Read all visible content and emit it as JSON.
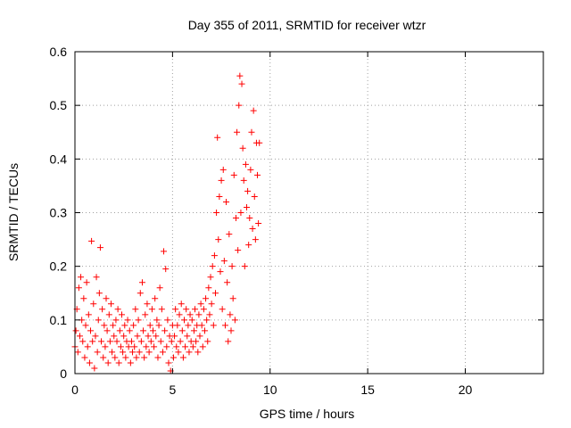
{
  "chart_data": {
    "type": "scatter",
    "title": "Day 355 of 2011, SRMTID for receiver wtzr",
    "xlabel": "GPS time / hours",
    "ylabel": "SRMTID / TECUs",
    "xlim": [
      0,
      24
    ],
    "ylim": [
      0,
      0.6
    ],
    "xticks": [
      0,
      5,
      10,
      15,
      20
    ],
    "yticks": [
      0,
      0.1,
      0.2,
      0.3,
      0.4,
      0.5,
      0.6
    ],
    "xtick_labels": [
      "0",
      "5",
      "10",
      "15",
      "20"
    ],
    "ytick_labels": [
      "0",
      "0.1",
      "0.2",
      "0.3",
      "0.4",
      "0.5",
      "0.6"
    ],
    "grid": true,
    "marker": "+",
    "marker_color": "#ff0000",
    "series": [
      {
        "name": "wtzr",
        "points": [
          [
            0.0,
            0.05
          ],
          [
            0.05,
            0.08
          ],
          [
            0.1,
            0.12
          ],
          [
            0.15,
            0.04
          ],
          [
            0.2,
            0.16
          ],
          [
            0.25,
            0.07
          ],
          [
            0.3,
            0.18
          ],
          [
            0.35,
            0.1
          ],
          [
            0.4,
            0.06
          ],
          [
            0.45,
            0.14
          ],
          [
            0.5,
            0.03
          ],
          [
            0.55,
            0.09
          ],
          [
            0.6,
            0.17
          ],
          [
            0.65,
            0.05
          ],
          [
            0.7,
            0.11
          ],
          [
            0.75,
            0.02
          ],
          [
            0.8,
            0.08
          ],
          [
            0.85,
            0.247
          ],
          [
            0.9,
            0.06
          ],
          [
            0.95,
            0.13
          ],
          [
            1.0,
            0.01
          ],
          [
            1.05,
            0.07
          ],
          [
            1.1,
            0.18
          ],
          [
            1.15,
            0.04
          ],
          [
            1.2,
            0.1
          ],
          [
            1.25,
            0.15
          ],
          [
            1.3,
            0.235
          ],
          [
            1.35,
            0.06
          ],
          [
            1.4,
            0.12
          ],
          [
            1.45,
            0.03
          ],
          [
            1.5,
            0.09
          ],
          [
            1.55,
            0.05
          ],
          [
            1.6,
            0.14
          ],
          [
            1.65,
            0.08
          ],
          [
            1.7,
            0.02
          ],
          [
            1.75,
            0.11
          ],
          [
            1.8,
            0.06
          ],
          [
            1.85,
            0.13
          ],
          [
            1.9,
            0.04
          ],
          [
            1.95,
            0.09
          ],
          [
            2.0,
            0.07
          ],
          [
            2.05,
            0.03
          ],
          [
            2.1,
            0.1
          ],
          [
            2.15,
            0.06
          ],
          [
            2.2,
            0.12
          ],
          [
            2.25,
            0.02
          ],
          [
            2.3,
            0.08
          ],
          [
            2.35,
            0.05
          ],
          [
            2.4,
            0.11
          ],
          [
            2.45,
            0.04
          ],
          [
            2.5,
            0.07
          ],
          [
            2.55,
            0.09
          ],
          [
            2.6,
            0.03
          ],
          [
            2.65,
            0.06
          ],
          [
            2.7,
            0.1
          ],
          [
            2.75,
            0.05
          ],
          [
            2.8,
            0.08
          ],
          [
            2.85,
            0.02
          ],
          [
            2.9,
            0.06
          ],
          [
            2.95,
            0.04
          ],
          [
            3.0,
            0.09
          ],
          [
            3.05,
            0.05
          ],
          [
            3.1,
            0.12
          ],
          [
            3.15,
            0.03
          ],
          [
            3.2,
            0.07
          ],
          [
            3.25,
            0.1
          ],
          [
            3.3,
            0.04
          ],
          [
            3.35,
            0.15
          ],
          [
            3.4,
            0.06
          ],
          [
            3.45,
            0.17
          ],
          [
            3.5,
            0.08
          ],
          [
            3.55,
            0.03
          ],
          [
            3.6,
            0.11
          ],
          [
            3.65,
            0.05
          ],
          [
            3.7,
            0.13
          ],
          [
            3.75,
            0.07
          ],
          [
            3.8,
            0.04
          ],
          [
            3.85,
            0.09
          ],
          [
            3.9,
            0.06
          ],
          [
            3.95,
            0.12
          ],
          [
            4.0,
            0.08
          ],
          [
            4.05,
            0.05
          ],
          [
            4.1,
            0.14
          ],
          [
            4.15,
            0.07
          ],
          [
            4.2,
            0.1
          ],
          [
            4.25,
            0.03
          ],
          [
            4.3,
            0.09
          ],
          [
            4.35,
            0.16
          ],
          [
            4.4,
            0.06
          ],
          [
            4.45,
            0.12
          ],
          [
            4.5,
            0.04
          ],
          [
            4.55,
            0.228
          ],
          [
            4.6,
            0.08
          ],
          [
            4.65,
            0.195
          ],
          [
            4.7,
            0.05
          ],
          [
            4.75,
            0.1
          ],
          [
            4.8,
            0.02
          ],
          [
            4.85,
            0.07
          ],
          [
            4.9,
            0.005
          ],
          [
            4.95,
            0.06
          ],
          [
            5.0,
            0.09
          ],
          [
            5.05,
            0.03
          ],
          [
            5.1,
            0.07
          ],
          [
            5.15,
            0.12
          ],
          [
            5.2,
            0.05
          ],
          [
            5.25,
            0.09
          ],
          [
            5.3,
            0.04
          ],
          [
            5.35,
            0.11
          ],
          [
            5.4,
            0.06
          ],
          [
            5.45,
            0.13
          ],
          [
            5.5,
            0.08
          ],
          [
            5.55,
            0.03
          ],
          [
            5.6,
            0.1
          ],
          [
            5.65,
            0.05
          ],
          [
            5.7,
            0.12
          ],
          [
            5.75,
            0.07
          ],
          [
            5.8,
            0.09
          ],
          [
            5.85,
            0.04
          ],
          [
            5.9,
            0.11
          ],
          [
            5.95,
            0.06
          ],
          [
            6.0,
            0.1
          ],
          [
            6.05,
            0.05
          ],
          [
            6.1,
            0.08
          ],
          [
            6.15,
            0.12
          ],
          [
            6.2,
            0.06
          ],
          [
            6.25,
            0.09
          ],
          [
            6.3,
            0.04
          ],
          [
            6.35,
            0.11
          ],
          [
            6.4,
            0.07
          ],
          [
            6.45,
            0.13
          ],
          [
            6.5,
            0.09
          ],
          [
            6.55,
            0.05
          ],
          [
            6.6,
            0.12
          ],
          [
            6.65,
            0.08
          ],
          [
            6.7,
            0.14
          ],
          [
            6.75,
            0.1
          ],
          [
            6.8,
            0.06
          ],
          [
            6.85,
            0.16
          ],
          [
            6.9,
            0.11
          ],
          [
            6.95,
            0.18
          ],
          [
            7.0,
            0.13
          ],
          [
            7.05,
            0.2
          ],
          [
            7.1,
            0.09
          ],
          [
            7.15,
            0.22
          ],
          [
            7.2,
            0.15
          ],
          [
            7.25,
            0.3
          ],
          [
            7.3,
            0.44
          ],
          [
            7.35,
            0.25
          ],
          [
            7.4,
            0.33
          ],
          [
            7.45,
            0.19
          ],
          [
            7.5,
            0.36
          ],
          [
            7.55,
            0.12
          ],
          [
            7.6,
            0.38
          ],
          [
            7.65,
            0.21
          ],
          [
            7.7,
            0.09
          ],
          [
            7.75,
            0.32
          ],
          [
            7.8,
            0.17
          ],
          [
            7.85,
            0.06
          ],
          [
            7.9,
            0.26
          ],
          [
            7.95,
            0.11
          ],
          [
            8.0,
            0.08
          ],
          [
            8.05,
            0.2
          ],
          [
            8.1,
            0.14
          ],
          [
            8.15,
            0.37
          ],
          [
            8.2,
            0.1
          ],
          [
            8.25,
            0.29
          ],
          [
            8.3,
            0.45
          ],
          [
            8.35,
            0.23
          ],
          [
            8.4,
            0.5
          ],
          [
            8.45,
            0.555
          ],
          [
            8.5,
            0.3
          ],
          [
            8.55,
            0.54
          ],
          [
            8.6,
            0.42
          ],
          [
            8.65,
            0.36
          ],
          [
            8.7,
            0.2
          ],
          [
            8.75,
            0.39
          ],
          [
            8.8,
            0.31
          ],
          [
            8.85,
            0.34
          ],
          [
            8.9,
            0.24
          ],
          [
            8.95,
            0.29
          ],
          [
            9.0,
            0.38
          ],
          [
            9.05,
            0.45
          ],
          [
            9.1,
            0.27
          ],
          [
            9.15,
            0.49
          ],
          [
            9.2,
            0.33
          ],
          [
            9.25,
            0.25
          ],
          [
            9.3,
            0.43
          ],
          [
            9.35,
            0.37
          ],
          [
            9.4,
            0.28
          ],
          [
            9.45,
            0.43
          ]
        ]
      }
    ]
  }
}
